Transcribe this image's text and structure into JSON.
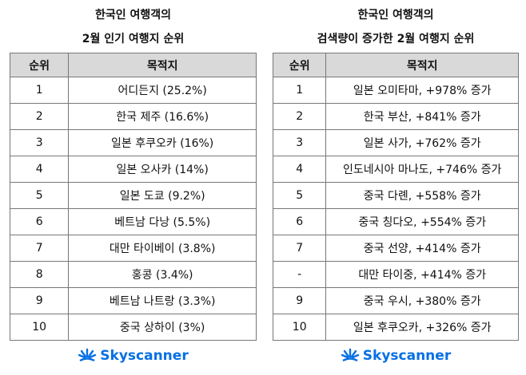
{
  "tables": [
    {
      "title": [
        "한국인 여행객의",
        "2월 인기 여행지 순위"
      ],
      "headers": [
        "순위",
        "목적지"
      ],
      "rows": [
        [
          "1",
          "어디든지 (25.2%)"
        ],
        [
          "2",
          "한국 제주 (16.6%)"
        ],
        [
          "3",
          "일본 후쿠오카 (16%)"
        ],
        [
          "4",
          "일본 오사카 (14%)"
        ],
        [
          "5",
          "일본 도쿄 (9.2%)"
        ],
        [
          "6",
          "베트남 다낭 (5.5%)"
        ],
        [
          "7",
          "대만 타이베이 (3.8%)"
        ],
        [
          "8",
          "홍콩 (3.4%)"
        ],
        [
          "9",
          "베트남 나트랑 (3.3%)"
        ],
        [
          "10",
          "중국 상하이 (3%)"
        ]
      ],
      "brand": "Skyscanner"
    },
    {
      "title": [
        "한국인 여행객의",
        "검색량이 증가한 2월 여행지 순위"
      ],
      "headers": [
        "순위",
        "목적지"
      ],
      "rows": [
        [
          "1",
          "일본 오미타마, +978% 증가"
        ],
        [
          "2",
          "한국 부산, +841% 증가"
        ],
        [
          "3",
          "일본 사가, +762% 증가"
        ],
        [
          "4",
          "인도네시아 마나도, +746% 증가"
        ],
        [
          "5",
          "중국 다롄, +558% 증가"
        ],
        [
          "6",
          "중국 칭다오, +554% 증가"
        ],
        [
          "7",
          "중국 선양, +414% 증가"
        ],
        [
          "-",
          "대만 타이중, +414% 증가"
        ],
        [
          "9",
          "중국 우시, +380% 증가"
        ],
        [
          "10",
          "일본 후쿠오카, +326% 증가"
        ]
      ],
      "brand": "Skyscanner"
    }
  ]
}
